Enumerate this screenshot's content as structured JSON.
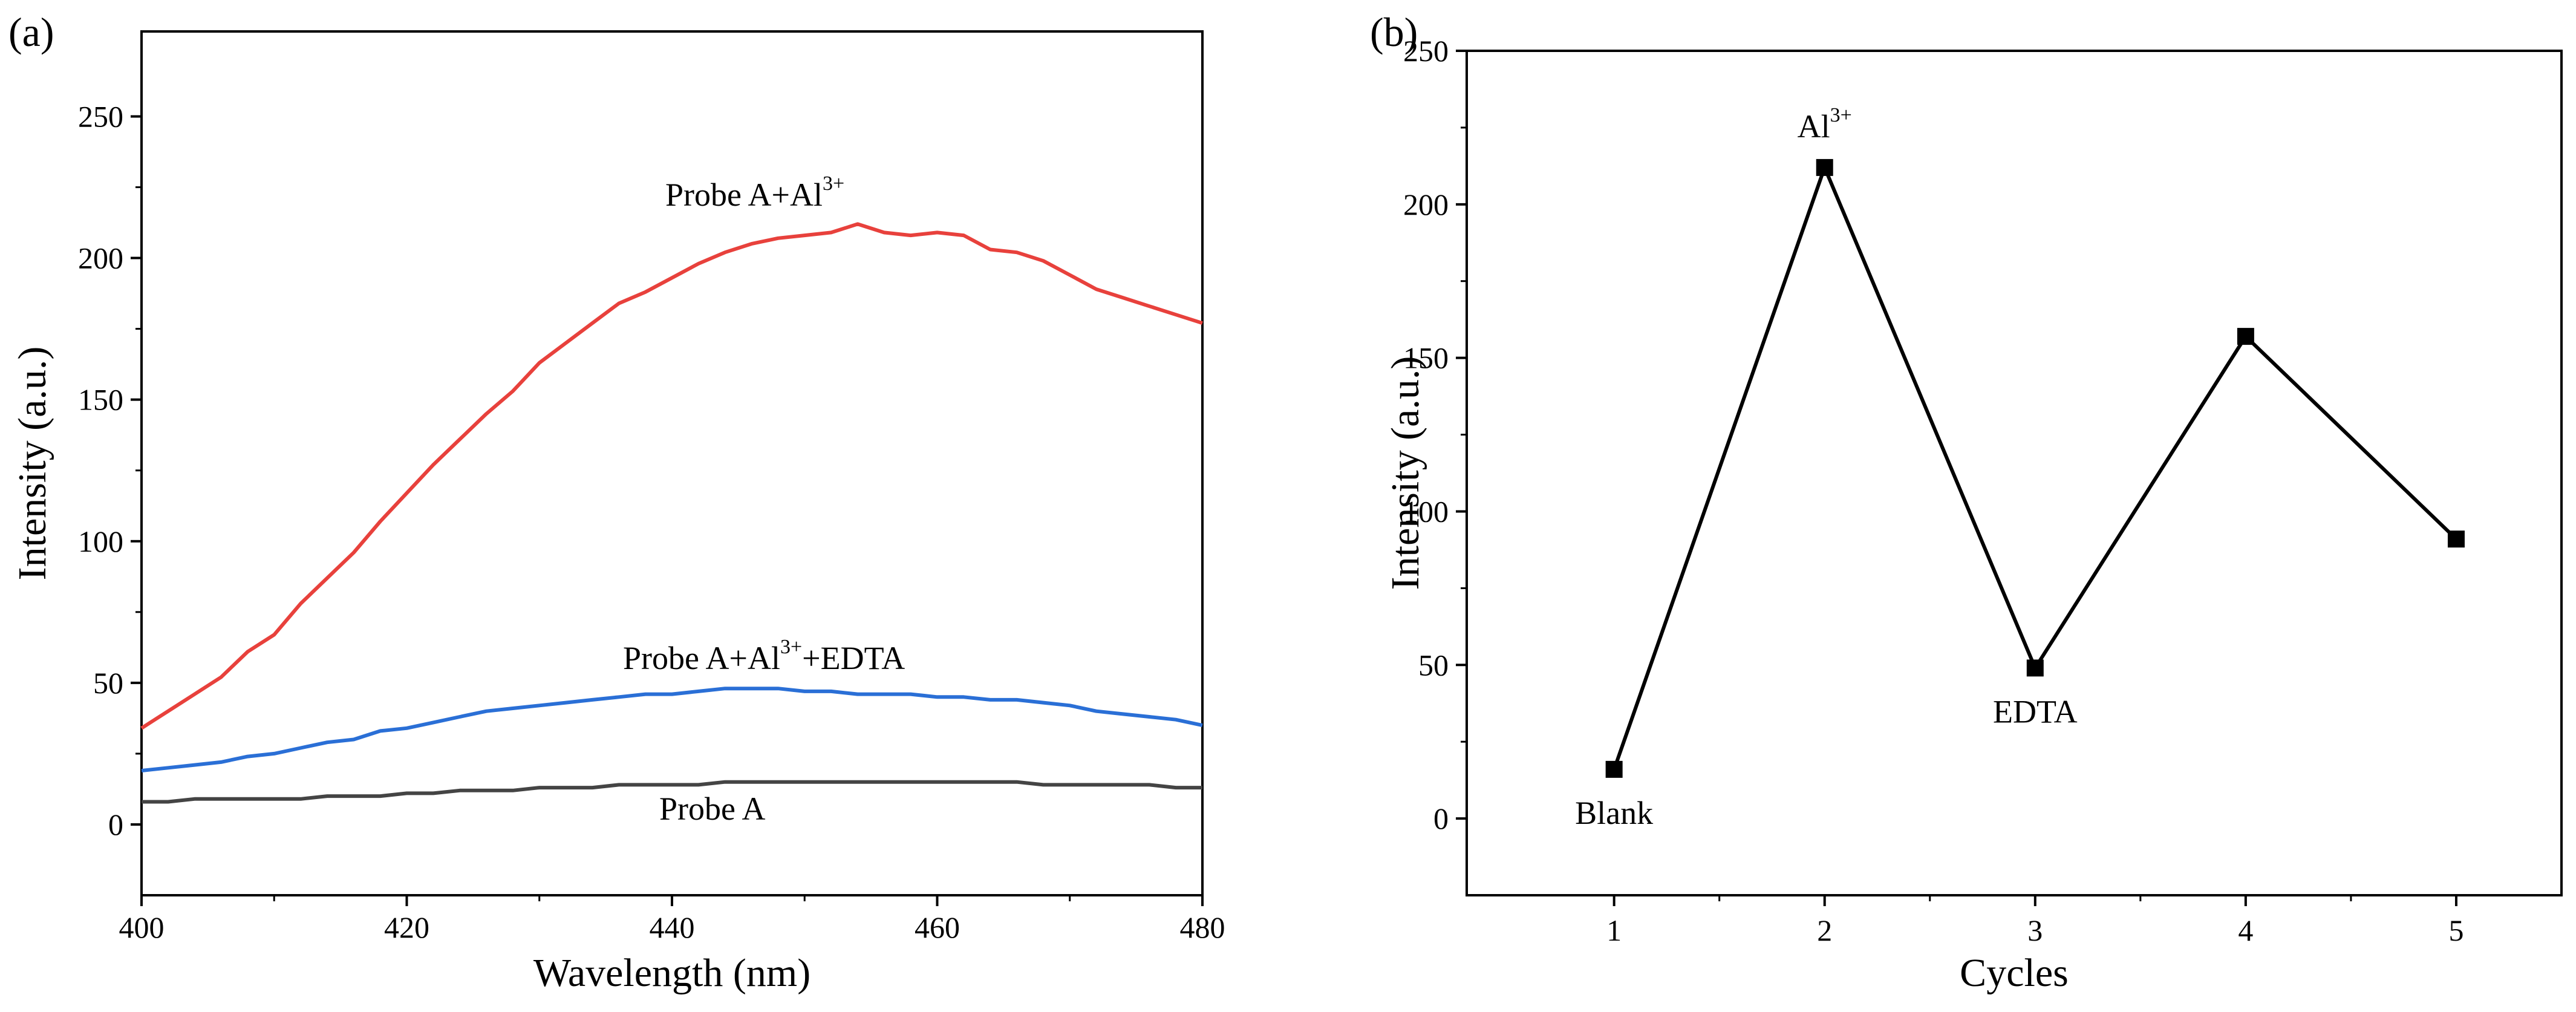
{
  "chart_data": [
    {
      "id": "a",
      "panel_label": "(a)",
      "type": "line",
      "xlabel": "Wavelength (nm)",
      "ylabel": "Intensity (a.u.)",
      "xlim": [
        400,
        480
      ],
      "ylim": [
        -25,
        280
      ],
      "xticks": [
        400,
        420,
        440,
        460,
        480
      ],
      "yticks": [
        0,
        50,
        100,
        150,
        200,
        250
      ],
      "series": [
        {
          "name": "Probe A+Al3+",
          "label_base": "Probe A+Al",
          "label_sup": "3+",
          "label_tail": "",
          "color": "#e8413c",
          "x": [
            400,
            402,
            404,
            406,
            408,
            410,
            412,
            414,
            416,
            418,
            420,
            422,
            424,
            426,
            428,
            430,
            432,
            434,
            436,
            438,
            440,
            442,
            444,
            446,
            448,
            450,
            452,
            454,
            456,
            458,
            460,
            462,
            464,
            466,
            468,
            470,
            472,
            474,
            476,
            478,
            480
          ],
          "y": [
            34,
            40,
            46,
            52,
            61,
            67,
            78,
            87,
            96,
            107,
            117,
            127,
            136,
            145,
            153,
            163,
            170,
            177,
            184,
            188,
            193,
            198,
            202,
            205,
            207,
            208,
            209,
            212,
            209,
            208,
            209,
            208,
            203,
            202,
            199,
            194,
            189,
            186,
            183,
            180,
            177
          ]
        },
        {
          "name": "Probe A+Al3++EDTA",
          "label_base": "Probe A+Al",
          "label_sup": "3+",
          "label_tail": "+EDTA",
          "color": "#2a6fd6",
          "x": [
            400,
            402,
            404,
            406,
            408,
            410,
            412,
            414,
            416,
            418,
            420,
            422,
            424,
            426,
            428,
            430,
            432,
            434,
            436,
            438,
            440,
            442,
            444,
            446,
            448,
            450,
            452,
            454,
            456,
            458,
            460,
            462,
            464,
            466,
            468,
            470,
            472,
            474,
            476,
            478,
            480
          ],
          "y": [
            19,
            20,
            21,
            22,
            24,
            25,
            27,
            29,
            30,
            33,
            34,
            36,
            38,
            40,
            41,
            42,
            43,
            44,
            45,
            46,
            46,
            47,
            48,
            48,
            48,
            47,
            47,
            46,
            46,
            46,
            45,
            45,
            44,
            44,
            43,
            42,
            40,
            39,
            38,
            37,
            35
          ],
          "label_y": 0
        },
        {
          "name": "Probe A",
          "label_base": "Probe A",
          "label_sup": "",
          "label_tail": "",
          "color": "#444444",
          "x": [
            400,
            402,
            404,
            406,
            408,
            410,
            412,
            414,
            416,
            418,
            420,
            422,
            424,
            426,
            428,
            430,
            432,
            434,
            436,
            438,
            440,
            442,
            444,
            446,
            448,
            450,
            452,
            454,
            456,
            458,
            460,
            462,
            464,
            466,
            468,
            470,
            472,
            474,
            476,
            478,
            480
          ],
          "y": [
            8,
            8,
            9,
            9,
            9,
            9,
            9,
            10,
            10,
            10,
            11,
            11,
            12,
            12,
            12,
            13,
            13,
            13,
            14,
            14,
            14,
            14,
            15,
            15,
            15,
            15,
            15,
            15,
            15,
            15,
            15,
            15,
            15,
            15,
            14,
            14,
            14,
            14,
            14,
            13,
            13
          ]
        }
      ]
    },
    {
      "id": "b",
      "panel_label": "(b)",
      "type": "line",
      "xlabel": "Cycles",
      "ylabel": "Intensity (a.u.)",
      "xlim": [
        0.3,
        5.5
      ],
      "ylim": [
        -25,
        250
      ],
      "xticks": [
        1,
        2,
        3,
        4,
        5
      ],
      "yticks": [
        0,
        50,
        100,
        150,
        200,
        250
      ],
      "series": [
        {
          "name": "Cycles",
          "color": "#000000",
          "marker": "square",
          "x": [
            1,
            2,
            3,
            4,
            5
          ],
          "y": [
            16,
            212,
            49,
            157,
            91
          ]
        }
      ],
      "annotations": [
        {
          "text": "Blank",
          "sup": "",
          "x": 1,
          "y": 16,
          "position": "below"
        },
        {
          "text": "Al",
          "sup": "3+",
          "x": 2,
          "y": 212,
          "position": "above"
        },
        {
          "text": "EDTA",
          "sup": "",
          "x": 3,
          "y": 49,
          "position": "below"
        }
      ]
    }
  ]
}
